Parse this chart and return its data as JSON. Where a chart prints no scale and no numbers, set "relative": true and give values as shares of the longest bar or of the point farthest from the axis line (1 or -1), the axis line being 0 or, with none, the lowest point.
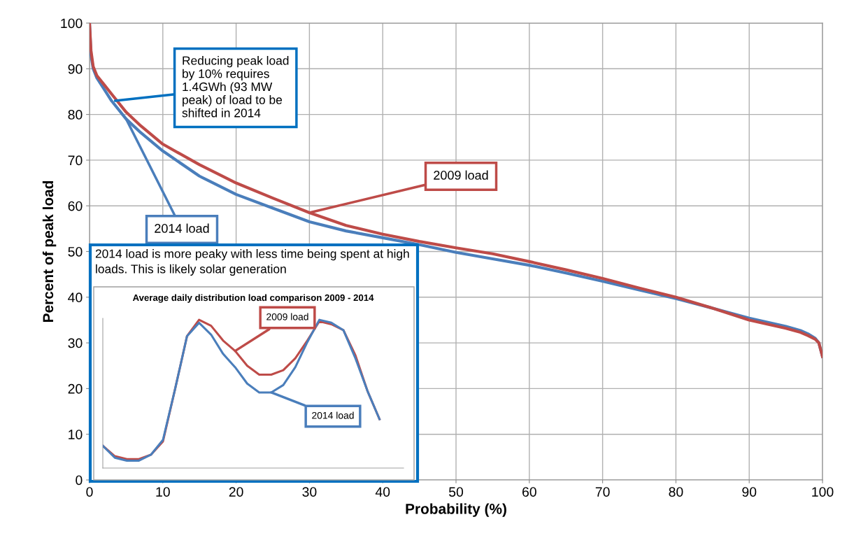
{
  "chart_data": [
    {
      "type": "line",
      "xlabel": "Probability (%)",
      "ylabel": "Percent of peak load",
      "x": [
        0,
        0.2,
        0.5,
        1,
        2,
        3,
        5,
        7,
        10,
        15,
        20,
        25,
        30,
        35,
        40,
        45,
        50,
        55,
        60,
        65,
        70,
        75,
        80,
        85,
        90,
        95,
        97,
        98,
        99,
        99.5,
        100
      ],
      "series": [
        {
          "name": "2014 load",
          "color": "#4a7ebb",
          "values": [
            100,
            93,
            90,
            88,
            85.5,
            83,
            79,
            76,
            72,
            66.5,
            62.5,
            59.5,
            56.5,
            54.5,
            53,
            51.5,
            49.8,
            48.4,
            47,
            45.3,
            43.5,
            41.6,
            39.7,
            37.6,
            35.4,
            33.6,
            32.7,
            32,
            31,
            30,
            27
          ]
        },
        {
          "name": "2009 load",
          "color": "#be4b48",
          "values": [
            100,
            94,
            90.5,
            88.5,
            86.5,
            84.5,
            80.5,
            77.5,
            73.5,
            69,
            65,
            61.7,
            58.5,
            55.7,
            53.8,
            52.2,
            50.8,
            49.5,
            47.8,
            46,
            44.1,
            42,
            40,
            37.6,
            35,
            33.2,
            32.3,
            31.6,
            30.8,
            30,
            27
          ]
        }
      ],
      "xlim": [
        0,
        100
      ],
      "xticks": [
        0,
        10,
        20,
        30,
        40,
        50,
        60,
        70,
        80,
        90,
        100
      ],
      "ylim": [
        0,
        100
      ],
      "yticks": [
        0,
        10,
        20,
        30,
        40,
        50,
        60,
        70,
        80,
        90,
        100
      ],
      "grid": true,
      "legend": false,
      "marker": "none",
      "line_style": "solid",
      "annotations": [
        {
          "text": "Reducing peak load\nby 10% requires\n1.4GWh (93 MW\npeak) of load to be\nshifted in 2014",
          "x": 3.5,
          "y": 83
        },
        "2014 load is more peaky with less time being spent at high\nloads. This is likely solar generation"
      ]
    },
    {
      "type": "line",
      "title": "Average daily distribution load comparison 2009 - 2014",
      "relative": true,
      "categories": [
        null,
        null,
        null,
        null,
        null,
        null,
        null,
        null,
        null,
        null,
        null,
        null,
        null,
        null,
        null,
        null,
        null,
        null,
        null,
        null,
        null,
        null,
        null,
        null
      ],
      "series": [
        {
          "name": "2009 load",
          "color": "#be4b48",
          "values": [
            0.15,
            0.08,
            0.06,
            0.06,
            0.09,
            0.18,
            0.53,
            0.89,
            1.0,
            0.96,
            0.86,
            0.79,
            0.69,
            0.63,
            0.63,
            0.66,
            0.74,
            0.86,
            0.99,
            0.97,
            0.93,
            0.76,
            0.52,
            0.33
          ]
        },
        {
          "name": "2014 load",
          "color": "#4a7ebb",
          "values": [
            0.15,
            0.07,
            0.05,
            0.05,
            0.09,
            0.19,
            0.53,
            0.89,
            0.98,
            0.9,
            0.77,
            0.68,
            0.57,
            0.51,
            0.51,
            0.56,
            0.68,
            0.85,
            1.0,
            0.98,
            0.93,
            0.74,
            0.52,
            0.33
          ]
        }
      ],
      "grid": false,
      "legend": false,
      "marker": "none",
      "line_style": "solid"
    }
  ]
}
